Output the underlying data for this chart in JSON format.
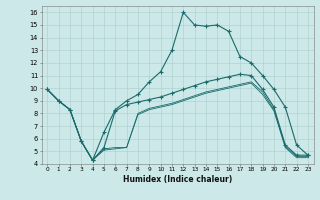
{
  "xlabel": "Humidex (Indice chaleur)",
  "xlim": [
    -0.5,
    23.5
  ],
  "ylim": [
    4,
    16.5
  ],
  "xticks": [
    0,
    1,
    2,
    3,
    4,
    5,
    6,
    7,
    8,
    9,
    10,
    11,
    12,
    13,
    14,
    15,
    16,
    17,
    18,
    19,
    20,
    21,
    22,
    23
  ],
  "yticks": [
    4,
    5,
    6,
    7,
    8,
    9,
    10,
    11,
    12,
    13,
    14,
    15,
    16
  ],
  "background_color": "#cce8e8",
  "grid_color": "#aacece",
  "line_color": "#1a6b6b",
  "line1_x": [
    0,
    1,
    2,
    3,
    4,
    5,
    6,
    7,
    8,
    9,
    10,
    11,
    12,
    13,
    14,
    15,
    16,
    17,
    18,
    19,
    20,
    21,
    22,
    23
  ],
  "line1_y": [
    9.9,
    9.0,
    8.3,
    5.8,
    4.3,
    6.5,
    8.3,
    9.0,
    9.5,
    10.5,
    11.3,
    13.0,
    16.0,
    15.0,
    14.9,
    15.0,
    14.5,
    12.5,
    12.0,
    11.0,
    9.9,
    8.5,
    5.5,
    4.7
  ],
  "line2_x": [
    0,
    1,
    2,
    3,
    4,
    5,
    6,
    7,
    8,
    9,
    10,
    11,
    12,
    13,
    14,
    15,
    16,
    17,
    18,
    19,
    20,
    21,
    22,
    23
  ],
  "line2_y": [
    9.9,
    9.0,
    8.3,
    5.8,
    4.3,
    5.3,
    8.2,
    8.7,
    8.9,
    9.1,
    9.3,
    9.6,
    9.9,
    10.2,
    10.5,
    10.7,
    10.9,
    11.1,
    11.0,
    9.9,
    8.5,
    5.5,
    4.7,
    4.7
  ],
  "line3_x": [
    0,
    1,
    2,
    3,
    4,
    5,
    6,
    7,
    8,
    9,
    10,
    11,
    12,
    13,
    14,
    15,
    16,
    17,
    18,
    19,
    20,
    21,
    22,
    23
  ],
  "line3_y": [
    9.9,
    9.0,
    8.3,
    5.8,
    4.3,
    5.2,
    5.3,
    5.3,
    8.0,
    8.4,
    8.6,
    8.8,
    9.1,
    9.4,
    9.7,
    9.9,
    10.1,
    10.3,
    10.5,
    9.7,
    8.3,
    5.4,
    4.6,
    4.6
  ],
  "line4_x": [
    0,
    1,
    2,
    3,
    4,
    5,
    6,
    7,
    8,
    9,
    10,
    11,
    12,
    13,
    14,
    15,
    16,
    17,
    18,
    19,
    20,
    21,
    22,
    23
  ],
  "line4_y": [
    9.9,
    9.0,
    8.3,
    5.8,
    4.3,
    5.1,
    5.2,
    5.3,
    7.9,
    8.3,
    8.5,
    8.7,
    9.0,
    9.3,
    9.6,
    9.8,
    10.0,
    10.2,
    10.4,
    9.5,
    8.2,
    5.3,
    4.5,
    4.5
  ]
}
